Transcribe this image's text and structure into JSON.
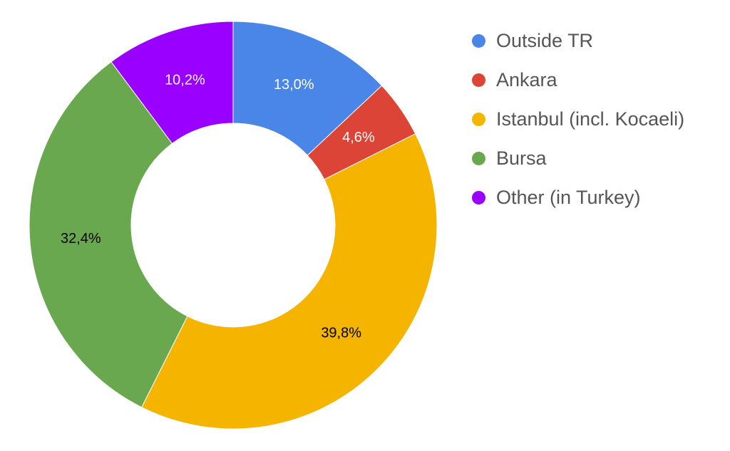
{
  "chart_data": {
    "type": "pie",
    "donut": true,
    "legend_position": "right",
    "slices": [
      {
        "label": "Outside TR",
        "value": 13.0,
        "display": "13,0%",
        "color": "#4a86e8",
        "label_color": "#ffffff"
      },
      {
        "label": "Ankara",
        "value": 4.6,
        "display": "4,6%",
        "color": "#db4437",
        "label_color": "#ffffff"
      },
      {
        "label": "Istanbul (incl. Kocaeli)",
        "value": 39.8,
        "display": "39,8%",
        "color": "#f4b400",
        "label_color": "#000000"
      },
      {
        "label": "Bursa",
        "value": 32.4,
        "display": "32,4%",
        "color": "#6aa84f",
        "label_color": "#000000"
      },
      {
        "label": "Other (in Turkey)",
        "value": 10.2,
        "display": "10,2%",
        "color": "#9900ff",
        "label_color": "#ffffff"
      }
    ]
  }
}
